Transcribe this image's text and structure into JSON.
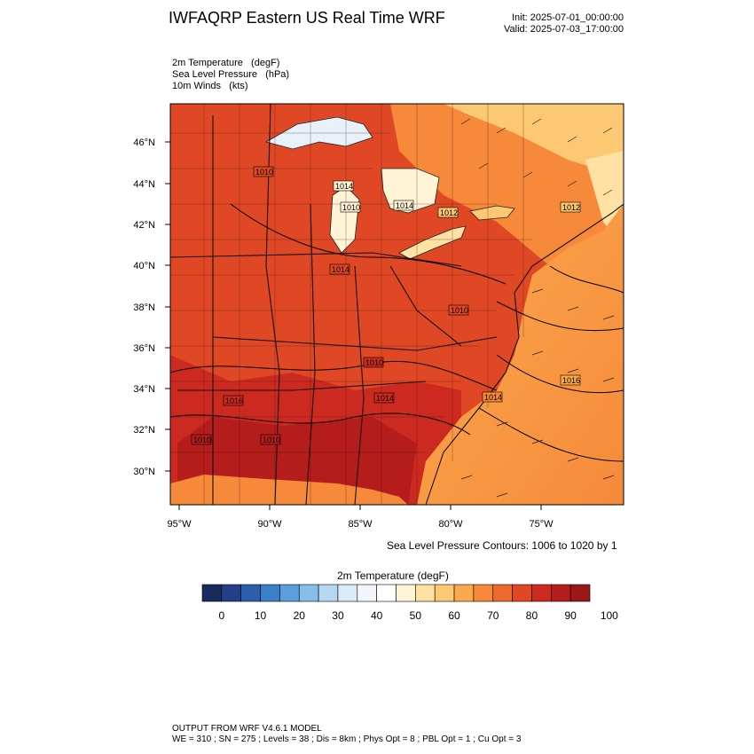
{
  "header": {
    "title": "IWFAQRP Eastern US Real Time WRF",
    "init": "Init: 2025-07-01_00:00:00",
    "valid": "Valid: 2025-07-03_17:00:00"
  },
  "fields": [
    "2m Temperature   (degF)",
    "Sea Level Pressure   (hPa)",
    "10m Winds   (kts)"
  ],
  "map": {
    "lat_labels": [
      "46°N",
      "44°N",
      "42°N",
      "40°N",
      "38°N",
      "36°N",
      "34°N",
      "32°N",
      "30°N"
    ],
    "lon_labels": [
      "95°W",
      "90°W",
      "85°W",
      "80°W",
      "75°W"
    ],
    "pressure_labels": [
      "1014",
      "1010",
      "1014",
      "1012",
      "1012",
      "1010",
      "1014",
      "1010",
      "1010",
      "1014",
      "1016",
      "1014",
      "1016",
      "1010",
      "1010"
    ],
    "contour_note": "Sea Level Pressure Contours: 1006 to 1020 by 1"
  },
  "colorbar": {
    "title": "2m Temperature  (degF)",
    "ticks": [
      "0",
      "10",
      "20",
      "30",
      "40",
      "50",
      "60",
      "70",
      "80",
      "90",
      "100"
    ],
    "colors": [
      "#1b2a5c",
      "#243f8a",
      "#2b5fae",
      "#3b7fc9",
      "#5a9fdc",
      "#86bde9",
      "#b5d8f2",
      "#dbeaf7",
      "#f2f5fa",
      "#ffffff",
      "#fff5d6",
      "#ffe2a3",
      "#fdc874",
      "#fba94e",
      "#f68a3a",
      "#ee6a2c",
      "#e04825",
      "#cc2a20",
      "#b51c1c",
      "#991818"
    ]
  },
  "footer": {
    "line1": "OUTPUT FROM WRF V4.6.1 MODEL",
    "line2": "WE = 310 ; SN = 275 ; Levels = 38 ; Dis = 8km ; Phys Opt = 8 ; PBL Opt = 1 ; Cu Opt = 3"
  }
}
